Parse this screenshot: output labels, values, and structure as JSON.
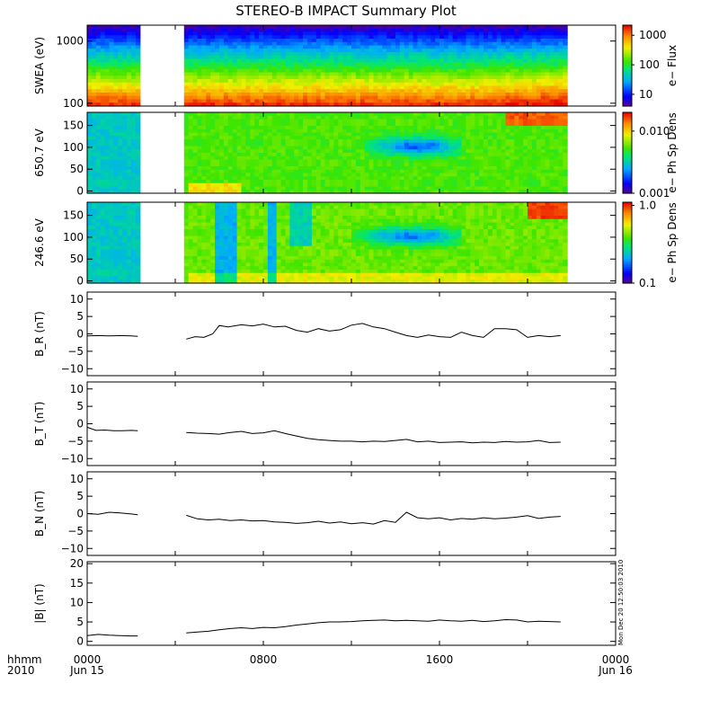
{
  "title": "STEREO-B IMPACT Summary Plot",
  "timestamp": "Mon Dec 20 12:50:03 2010",
  "colors": {
    "axis": "#000000",
    "trace": "#000000",
    "background": "#ffffff"
  },
  "chart_data": [
    {
      "type": "heatmap",
      "ylabel": "SWEA (eV)",
      "yscale": "log",
      "ylim": [
        90,
        1800
      ],
      "yticks": [
        {
          "v": 100,
          "label": "100"
        },
        {
          "v": 1000,
          "label": "1000"
        }
      ],
      "colorbar": {
        "label": "e− Flux",
        "scale": "log",
        "range": [
          4,
          2200
        ],
        "ticks": [
          {
            "v": 10,
            "label": "10"
          },
          {
            "v": 100,
            "label": "100"
          },
          {
            "v": 1000,
            "label": "1000"
          }
        ]
      },
      "data_gap_hours": [
        [
          2.5,
          4.5
        ],
        [
          21.8,
          24
        ]
      ],
      "pattern": "energy-spectrum"
    },
    {
      "type": "heatmap",
      "ylabel": "650.7 eV",
      "ylim": [
        -5,
        180
      ],
      "yticks": [
        {
          "v": 0,
          "label": "0"
        },
        {
          "v": 50,
          "label": "50"
        },
        {
          "v": 100,
          "label": "100"
        },
        {
          "v": 150,
          "label": "150"
        }
      ],
      "colorbar": {
        "label": "e− Ph Sp Dens",
        "scale": "log",
        "range": [
          0.001,
          0.02
        ],
        "ticks": [
          {
            "v": 0.001,
            "label": "0.001"
          },
          {
            "v": 0.01,
            "label": "0.010"
          }
        ]
      },
      "data_gap_hours": [
        [
          2.5,
          4.5
        ],
        [
          21.8,
          24
        ]
      ],
      "pattern": "pitch-angle-650"
    },
    {
      "type": "heatmap",
      "ylabel": "246.6 eV",
      "ylim": [
        -5,
        180
      ],
      "yticks": [
        {
          "v": 0,
          "label": "0"
        },
        {
          "v": 50,
          "label": "50"
        },
        {
          "v": 100,
          "label": "100"
        },
        {
          "v": 150,
          "label": "150"
        }
      ],
      "colorbar": {
        "label": "e− Ph Sp Dens",
        "scale": "log",
        "range": [
          0.1,
          1.1
        ],
        "ticks": [
          {
            "v": 0.1,
            "label": "0.1"
          },
          {
            "v": 1.0,
            "label": "1.0"
          }
        ]
      },
      "data_gap_hours": [
        [
          2.5,
          4.5
        ],
        [
          21.8,
          24
        ]
      ],
      "pattern": "pitch-angle-246"
    },
    {
      "type": "line",
      "ylabel": "B_R (nT)",
      "ylim": [
        -12,
        12
      ],
      "yticks": [
        {
          "v": 10,
          "label": "10"
        },
        {
          "v": 5,
          "label": "5"
        },
        {
          "v": 0,
          "label": "0"
        },
        {
          "v": -5,
          "label": "−5"
        },
        {
          "v": -10,
          "label": "−10"
        }
      ],
      "x": [
        0,
        0.5,
        1,
        1.5,
        2,
        2.3,
        4.5,
        4.9,
        5.3,
        5.7,
        6,
        6.4,
        7,
        7.5,
        8,
        8.5,
        9,
        9.5,
        10,
        10.5,
        11,
        11.5,
        12,
        12.5,
        13,
        13.5,
        14,
        14.5,
        15,
        15.5,
        16,
        16.5,
        17,
        17.5,
        18,
        18.5,
        19,
        19.5,
        20,
        20.5,
        21,
        21.5
      ],
      "y": [
        -0.6,
        -0.5,
        -0.6,
        -0.5,
        -0.6,
        -0.7,
        -1.5,
        -0.8,
        -1.0,
        0.0,
        2.4,
        2.0,
        2.6,
        2.3,
        2.8,
        2.0,
        2.2,
        1.0,
        0.5,
        1.5,
        0.8,
        1.2,
        2.5,
        3.0,
        2.0,
        1.5,
        0.5,
        -0.5,
        -1.0,
        -0.3,
        -0.8,
        -1.0,
        0.5,
        -0.5,
        -1.0,
        1.5,
        1.5,
        1.2,
        -1.0,
        -0.5,
        -0.8,
        -0.5
      ]
    },
    {
      "type": "line",
      "ylabel": "B_T (nT)",
      "ylim": [
        -12,
        12
      ],
      "yticks": [
        {
          "v": 10,
          "label": "10"
        },
        {
          "v": 5,
          "label": "5"
        },
        {
          "v": 0,
          "label": "0"
        },
        {
          "v": -5,
          "label": "−5"
        },
        {
          "v": -10,
          "label": "−10"
        }
      ],
      "x": [
        0,
        0.4,
        0.8,
        1.2,
        1.6,
        2,
        2.3,
        4.5,
        5,
        5.5,
        6,
        6.5,
        7,
        7.5,
        8,
        8.5,
        9,
        9.5,
        10,
        10.5,
        11,
        11.5,
        12,
        12.5,
        13,
        13.5,
        14,
        14.5,
        15,
        15.5,
        16,
        16.5,
        17,
        17.5,
        18,
        18.5,
        19,
        19.5,
        20,
        20.5,
        21,
        21.5
      ],
      "y": [
        -1.0,
        -1.9,
        -1.8,
        -2.0,
        -2.0,
        -1.9,
        -2.0,
        -2.5,
        -2.7,
        -2.8,
        -3.0,
        -2.5,
        -2.2,
        -2.8,
        -2.6,
        -2.0,
        -2.8,
        -3.5,
        -4.2,
        -4.6,
        -4.8,
        -5.0,
        -5.0,
        -5.2,
        -5.0,
        -5.1,
        -4.8,
        -4.5,
        -5.2,
        -5.0,
        -5.4,
        -5.3,
        -5.2,
        -5.5,
        -5.3,
        -5.4,
        -5.1,
        -5.3,
        -5.2,
        -4.8,
        -5.4,
        -5.3
      ]
    },
    {
      "type": "line",
      "ylabel": "B_N (nT)",
      "ylim": [
        -12,
        12
      ],
      "yticks": [
        {
          "v": 10,
          "label": "10"
        },
        {
          "v": 5,
          "label": "5"
        },
        {
          "v": 0,
          "label": "0"
        },
        {
          "v": -5,
          "label": "−5"
        },
        {
          "v": -10,
          "label": "−10"
        }
      ],
      "x": [
        0,
        0.5,
        1,
        1.5,
        2,
        2.3,
        4.5,
        5,
        5.5,
        6,
        6.5,
        7,
        7.5,
        8,
        8.5,
        9,
        9.5,
        10,
        10.5,
        11,
        11.5,
        12,
        12.5,
        13,
        13.5,
        14,
        14.5,
        15,
        15.5,
        16,
        16.5,
        17,
        17.5,
        18,
        18.5,
        19,
        19.5,
        20,
        20.5,
        21,
        21.5
      ],
      "y": [
        0.0,
        -0.2,
        0.4,
        0.2,
        -0.1,
        -0.3,
        -0.5,
        -1.5,
        -1.8,
        -1.6,
        -2.0,
        -1.8,
        -2.1,
        -2.0,
        -2.4,
        -2.5,
        -2.8,
        -2.6,
        -2.2,
        -2.7,
        -2.4,
        -2.9,
        -2.6,
        -3.0,
        -2.0,
        -2.5,
        0.4,
        -1.2,
        -1.5,
        -1.2,
        -1.8,
        -1.4,
        -1.6,
        -1.2,
        -1.5,
        -1.3,
        -1.0,
        -0.6,
        -1.4,
        -1.0,
        -0.8
      ]
    },
    {
      "type": "line",
      "ylabel": "|B| (nT)",
      "ylim": [
        -1,
        20.5
      ],
      "yticks": [
        {
          "v": 20,
          "label": "20"
        },
        {
          "v": 15,
          "label": "15"
        },
        {
          "v": 10,
          "label": "10"
        },
        {
          "v": 5,
          "label": "5"
        },
        {
          "v": 0,
          "label": "0"
        }
      ],
      "x": [
        0,
        0.5,
        1,
        1.5,
        2,
        2.3,
        4.5,
        5,
        5.5,
        6,
        6.5,
        7,
        7.5,
        8,
        8.5,
        9,
        9.5,
        10,
        10.5,
        11,
        11.5,
        12,
        12.5,
        13,
        13.5,
        14,
        14.5,
        15,
        15.5,
        16,
        16.5,
        17,
        17.5,
        18,
        18.5,
        19,
        19.5,
        20,
        20.5,
        21,
        21.5
      ],
      "y": [
        1.5,
        1.8,
        1.6,
        1.5,
        1.4,
        1.4,
        2.2,
        2.4,
        2.6,
        3.0,
        3.3,
        3.5,
        3.3,
        3.6,
        3.5,
        3.8,
        4.2,
        4.5,
        4.8,
        5.0,
        5.0,
        5.1,
        5.3,
        5.4,
        5.5,
        5.3,
        5.4,
        5.3,
        5.2,
        5.5,
        5.3,
        5.2,
        5.4,
        5.1,
        5.3,
        5.6,
        5.5,
        5.0,
        5.2,
        5.1,
        5.0
      ]
    }
  ],
  "xaxis": {
    "range_hours": [
      0,
      24
    ],
    "lead_labels": [
      "hhmm",
      "2010"
    ],
    "ticks": [
      {
        "h": 0,
        "time": "0000",
        "date": "Jun 15"
      },
      {
        "h": 8,
        "time": "0800",
        "date": ""
      },
      {
        "h": 16,
        "time": "1600",
        "date": ""
      },
      {
        "h": 24,
        "time": "0000",
        "date": "Jun 16"
      }
    ]
  }
}
